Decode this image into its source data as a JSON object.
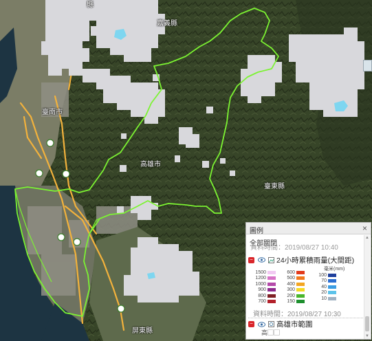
{
  "map": {
    "place_labels": [
      {
        "name": "臺南市",
        "label": "臺南市"
      },
      {
        "name": "嘉義縣",
        "label": "嘉義縣"
      },
      {
        "name": "高雄市",
        "label": "高雄市"
      },
      {
        "name": "臺東縣",
        "label": "臺東縣"
      },
      {
        "name": "屏東縣",
        "label": "屏東縣"
      }
    ],
    "top_partial_label": "縣",
    "colors": {
      "boundary": "#7cf332",
      "highway": "#f3b23c",
      "cloud_mask": "#d8d8dc",
      "rain_cell": "#7ed6f0",
      "land": "#3d4a2c",
      "sea": "#16303f"
    },
    "icons": [
      "rain-station-marker-icon",
      "map-widget-icon"
    ]
  },
  "legend": {
    "title": "圖例",
    "close_icon": "×",
    "toggle_all": "全部關閉",
    "time_top": "資料時間：2019/08/27 10:40",
    "layer1": {
      "label": "24小時累積雨量(大間距)",
      "unit": "毫米(mm)",
      "scale_left": [
        {
          "value": "1500",
          "color": "#f1c9f2"
        },
        {
          "value": "1200",
          "color": "#d772c6"
        },
        {
          "value": "1000",
          "color": "#b44aa9"
        },
        {
          "value": "900",
          "color": "#8d2a8d"
        },
        {
          "value": "800",
          "color": "#7e1f24"
        },
        {
          "value": "700",
          "color": "#b3212b"
        }
      ],
      "scale_mid": [
        {
          "value": "600",
          "color": "#e23a1c"
        },
        {
          "value": "500",
          "color": "#f1781d"
        },
        {
          "value": "400",
          "color": "#f3a521"
        },
        {
          "value": "300",
          "color": "#f4d923"
        },
        {
          "value": "200",
          "color": "#48b52b"
        },
        {
          "value": "150",
          "color": "#1e8f2e"
        }
      ],
      "scale_right": [
        {
          "value": "100",
          "color": "#1f3f9c"
        },
        {
          "value": "70",
          "color": "#2c6ed1"
        },
        {
          "value": "40",
          "color": "#3b9de3"
        },
        {
          "value": "20",
          "color": "#5cc3ea"
        },
        {
          "value": "10",
          "color": "#9fb1c2"
        }
      ]
    },
    "time_layer1": "資料時間：2019/08/27 10:30",
    "layer2": {
      "label": "高雄市範圍",
      "extra": "高▢▢"
    },
    "accent_color": "#d9262b"
  }
}
